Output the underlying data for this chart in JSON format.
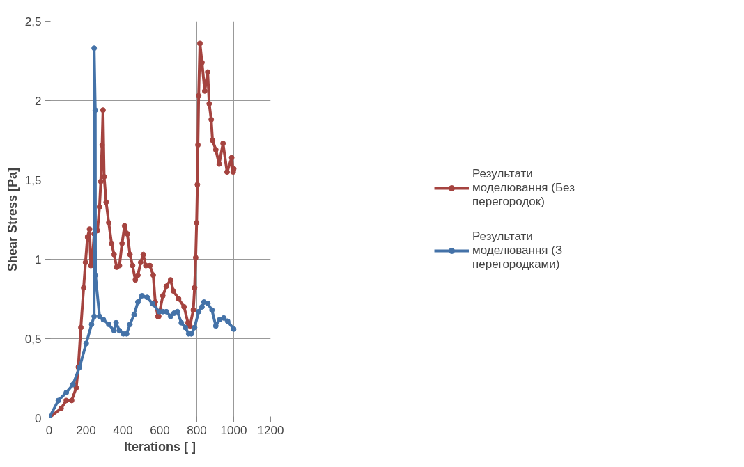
{
  "chart_data": {
    "type": "line",
    "xlabel": "Iterations [ ]",
    "ylabel": "Shear Stress [Pa]",
    "xlim": [
      0,
      1200
    ],
    "xticks": [
      0,
      200,
      400,
      600,
      800,
      1000,
      1200
    ],
    "ylim": [
      0,
      2.5
    ],
    "yticks": [
      0,
      {
        "value": 0.5,
        "label": "0,5"
      },
      1,
      {
        "value": 1.5,
        "label": "1,5"
      },
      2,
      {
        "value": 2.5,
        "label": "2,5"
      }
    ],
    "grid": true,
    "legend": "right",
    "marker": "circle",
    "line_style": "solid",
    "series": [
      {
        "name": "Результати моделювання (Без перегородок)",
        "color": "#a5433f",
        "x": [
          0,
          65,
          93,
          122,
          147,
          158,
          172,
          187,
          197,
          208,
          219,
          226,
          233,
          244,
          262,
          273,
          280,
          287,
          292,
          298,
          309,
          323,
          338,
          352,
          366,
          381,
          395,
          409,
          424,
          438,
          452,
          467,
          481,
          496,
          510,
          524,
          546,
          564,
          575,
          589,
          594,
          616,
          635,
          658,
          673,
          702,
          731,
          752,
          763,
          781,
          788,
          794,
          799,
          803,
          806,
          810,
          817,
          828,
          843,
          859,
          867,
          878,
          885,
          903,
          921,
          942,
          964,
          989,
          997,
          1000
        ],
        "values": [
          0,
          0.06,
          0.11,
          0.11,
          0.19,
          0.32,
          0.57,
          0.82,
          0.98,
          1.14,
          1.19,
          0.96,
          0.98,
          1.16,
          1.18,
          1.33,
          1.49,
          1.72,
          1.94,
          1.52,
          1.36,
          1.23,
          1.1,
          1.03,
          0.95,
          0.96,
          1.1,
          1.21,
          1.16,
          1.03,
          0.96,
          0.87,
          0.9,
          0.98,
          1.03,
          0.96,
          0.96,
          0.9,
          0.73,
          0.64,
          0.64,
          0.77,
          0.83,
          0.87,
          0.8,
          0.75,
          0.7,
          0.6,
          0.58,
          0.68,
          0.82,
          1.01,
          1.23,
          1.47,
          1.72,
          2.03,
          2.36,
          2.24,
          2.06,
          2.18,
          1.98,
          1.88,
          1.75,
          1.69,
          1.6,
          1.73,
          1.55,
          1.64,
          1.55,
          1.57
        ]
      },
      {
        "name": "Результати моделювання (З перегородками)",
        "color": "#4472a8",
        "x": [
          0,
          50,
          93,
          129,
          165,
          201,
          230,
          244,
          244,
          250,
          251,
          273,
          294,
          323,
          352,
          363,
          381,
          402,
          420,
          438,
          460,
          481,
          503,
          531,
          560,
          596,
          616,
          635,
          658,
          677,
          695,
          716,
          738,
          756,
          770,
          788,
          810,
          828,
          839,
          860,
          882,
          903,
          924,
          946,
          967,
          1000
        ],
        "values": [
          0,
          0.11,
          0.16,
          0.21,
          0.32,
          0.47,
          0.59,
          0.64,
          2.33,
          1.94,
          0.9,
          0.64,
          0.62,
          0.59,
          0.55,
          0.6,
          0.55,
          0.53,
          0.53,
          0.59,
          0.65,
          0.73,
          0.77,
          0.76,
          0.72,
          0.67,
          0.67,
          0.67,
          0.64,
          0.66,
          0.67,
          0.6,
          0.57,
          0.53,
          0.53,
          0.57,
          0.67,
          0.7,
          0.73,
          0.72,
          0.68,
          0.58,
          0.62,
          0.63,
          0.61,
          0.56
        ]
      }
    ]
  }
}
